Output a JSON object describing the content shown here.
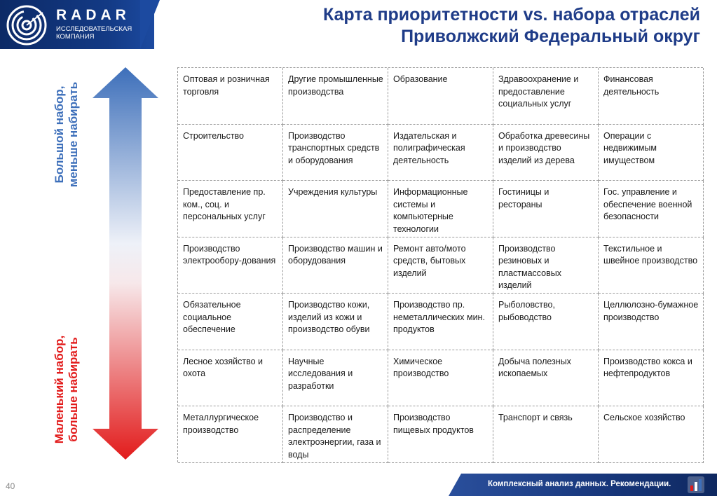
{
  "header": {
    "brand": "RADAR",
    "brand_sub": "ИССЛЕДОВАТЕЛЬСКАЯ КОМПАНИЯ",
    "title_line1": "Карта приоритетности vs. набора отраслей",
    "title_line2": "Приволжский Федеральный округ"
  },
  "scale": {
    "top_label": "Большой набор,\nменьше набирать",
    "bottom_label": "Маленький набор,\nбольше набирать",
    "top_color": "#3d6fba",
    "bottom_color": "#e21b1b"
  },
  "grid": {
    "rows": [
      [
        "Оптовая и розничная торговля",
        "Другие промышленные производства",
        "Образование",
        "Здравоохранение и предоставление социальных услуг",
        "Финансовая деятельность"
      ],
      [
        "Строительство",
        "Производство транспортных средств и оборудования",
        "Издательская и полиграфическая деятельность",
        "Обработка древесины и производство изделий из дерева",
        "Операции с недвижимым имуществом"
      ],
      [
        "Предоставление пр. ком., соц. и персональных услуг",
        "Учреждения культуры",
        "Информационные системы и компьютерные технологии",
        "Гостиницы и рестораны",
        "Гос. управление и обеспечение военной безопасности"
      ],
      [
        "Производство электрообору-дования",
        "Производство машин и оборудования",
        "Ремонт авто/мото средств, бытовых изделий",
        "Производство резиновых и пластмассовых изделий",
        "Текстильное и швейное производство"
      ],
      [
        "Обязательное социальное обеспечение",
        "Производство кожи, изделий из кожи и производство обуви",
        "Производство пр. неметаллических мин. продуктов",
        "Рыболовство, рыбоводство",
        "Целлюлозно-бумажное производство"
      ],
      [
        "Лесное хозяйство и охота",
        "Научные исследования и разработки",
        "Химическое производство",
        "Добыча полезных ископаемых",
        "Производство кокса и нефтепродуктов"
      ],
      [
        "Металлургическое производство",
        "Производство и распределение электроэнергии, газа и воды",
        "Производство пищевых продуктов",
        "Транспорт и связь",
        "Сельское хозяйство"
      ]
    ]
  },
  "footer": {
    "page_number": "40",
    "tagline": "Комплексный анализ данных. Рекомендации.",
    "icon": "chart-icon"
  },
  "colors": {
    "brand_dark": "#0c2a66",
    "title": "#1f3c88"
  }
}
